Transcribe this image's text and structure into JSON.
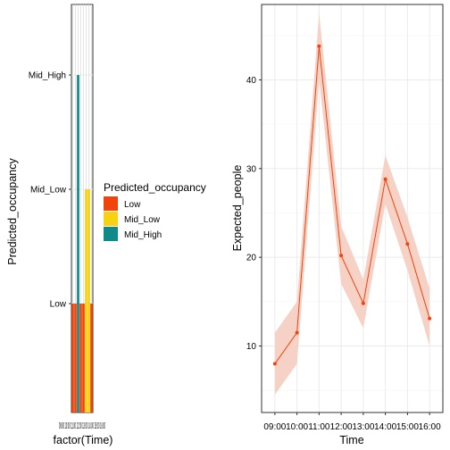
{
  "chart_data": [
    {
      "type": "bar",
      "title": "",
      "xlabel": "factor(Time)",
      "ylabel": "Predicted_occupancy",
      "y_levels": [
        "Low",
        "Mid_Low",
        "Mid_High"
      ],
      "x_categories": [
        "09:00",
        "10:00",
        "11:00",
        "12:00",
        "13:00",
        "14:00",
        "15:00",
        "16:00"
      ],
      "x_tick_text": "09:00 10:00 11:00 12:00 13:00 14:00 15:00 16:00",
      "values": [
        "Low",
        "Low",
        "Mid_High",
        "Low",
        "Low",
        "Mid_Low",
        "Mid_Low",
        "Low"
      ],
      "grid": true,
      "legend": {
        "title": "Predicted_occupancy",
        "position": "right",
        "items": [
          {
            "label": "Low",
            "color": "#F0440C"
          },
          {
            "label": "Mid_Low",
            "color": "#F8D210"
          },
          {
            "label": "Mid_High",
            "color": "#0E8A89"
          }
        ]
      }
    },
    {
      "type": "line",
      "title": "",
      "xlabel": "Time",
      "ylabel": "Expected_people",
      "x": [
        "09:00",
        "10:00",
        "11:00",
        "12:00",
        "13:00",
        "14:00",
        "15:00",
        "16:00"
      ],
      "y": [
        8.0,
        11.5,
        43.8,
        20.2,
        14.8,
        28.8,
        21.5,
        13.1
      ],
      "ribbon_lower": [
        4.5,
        8.0,
        40.0,
        17.0,
        12.0,
        26.0,
        18.5,
        10.0
      ],
      "ribbon_upper": [
        11.5,
        15.0,
        47.5,
        23.5,
        17.5,
        31.5,
        24.5,
        16.5
      ],
      "ylim": [
        2.5,
        48.5
      ],
      "yticks": [
        10,
        20,
        30,
        40
      ],
      "grid": true,
      "line_color": "#F0440C",
      "ribbon_color": "#F6D2C6"
    }
  ]
}
